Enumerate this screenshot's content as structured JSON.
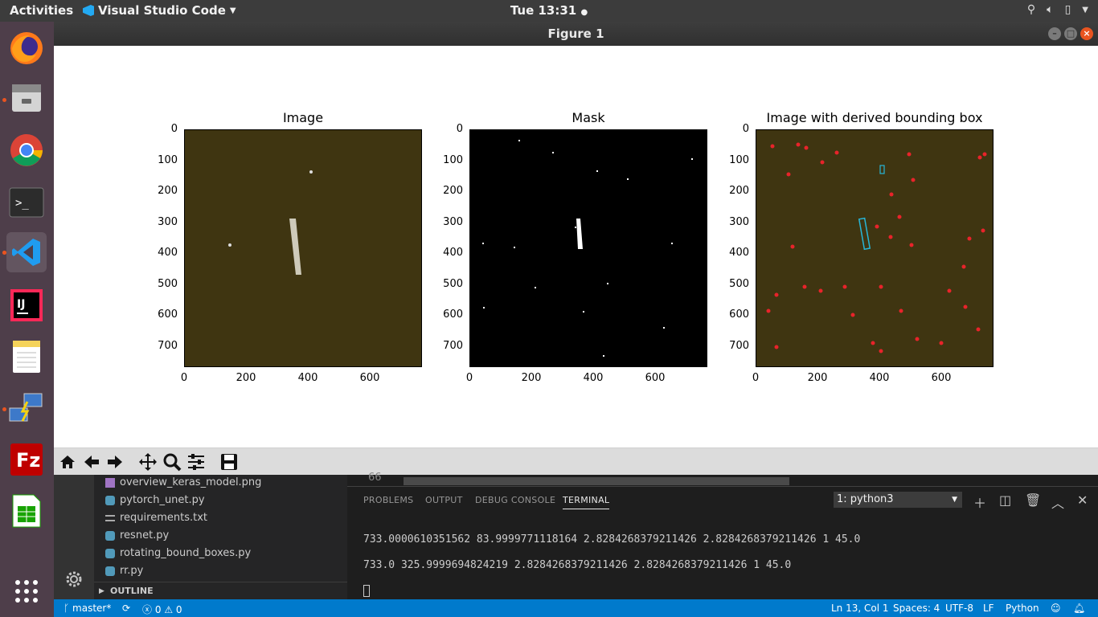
{
  "topbar": {
    "activities": "Activities",
    "app_name": "Visual Studio Code",
    "clock": "Tue 13:31"
  },
  "dock": {
    "items": [
      "firefox",
      "files",
      "chrome",
      "terminal",
      "vscode",
      "intellij",
      "notes",
      "network",
      "filezilla",
      "spreadsheet",
      "app-grid"
    ]
  },
  "figure": {
    "window_title": "Figure 1",
    "panels": [
      {
        "title": "Image",
        "xticks": [
          "0",
          "200",
          "400",
          "600"
        ],
        "yticks": [
          "0",
          "100",
          "200",
          "300",
          "400",
          "500",
          "600",
          "700"
        ]
      },
      {
        "title": "Mask",
        "xticks": [
          "0",
          "200",
          "400",
          "600"
        ],
        "yticks": [
          "0",
          "100",
          "200",
          "300",
          "400",
          "500",
          "600",
          "700"
        ]
      },
      {
        "title": "Image with derived bounding box",
        "xticks": [
          "0",
          "200",
          "400",
          "600"
        ],
        "yticks": [
          "0",
          "100",
          "200",
          "300",
          "400",
          "500",
          "600",
          "700"
        ]
      }
    ]
  },
  "explorer": {
    "files": [
      "overview_keras_model.png",
      "pytorch_unet.py",
      "requirements.txt",
      "resnet.py",
      "rotating_bound_boxes.py",
      "rr.py"
    ],
    "outline_label": "OUTLINE"
  },
  "editor": {
    "line_number": "66"
  },
  "panel": {
    "tabs": [
      "PROBLEMS",
      "OUTPUT",
      "DEBUG CONSOLE",
      "TERMINAL"
    ],
    "active_tab": "TERMINAL",
    "terminal_select": "1: python3",
    "lines": [
      "733.0000610351562 83.9999771118164 2.8284268379211426 2.8284268379211426 1 45.0",
      "733.0 325.9999694824219 2.8284268379211426 2.8284268379211426 1 45.0"
    ]
  },
  "statusbar": {
    "branch": "master*",
    "errors": "0",
    "warnings": "0",
    "position": "Ln 13, Col 1",
    "spaces": "Spaces: 4",
    "encoding": "UTF-8",
    "eol": "LF",
    "language": "Python"
  },
  "colors": {
    "accent": "#007acc",
    "ubuntu_orange": "#e95420",
    "image_bg": "#3f3511",
    "bbox_cyan": "#27b6d8",
    "marker_red": "#e8232a"
  }
}
